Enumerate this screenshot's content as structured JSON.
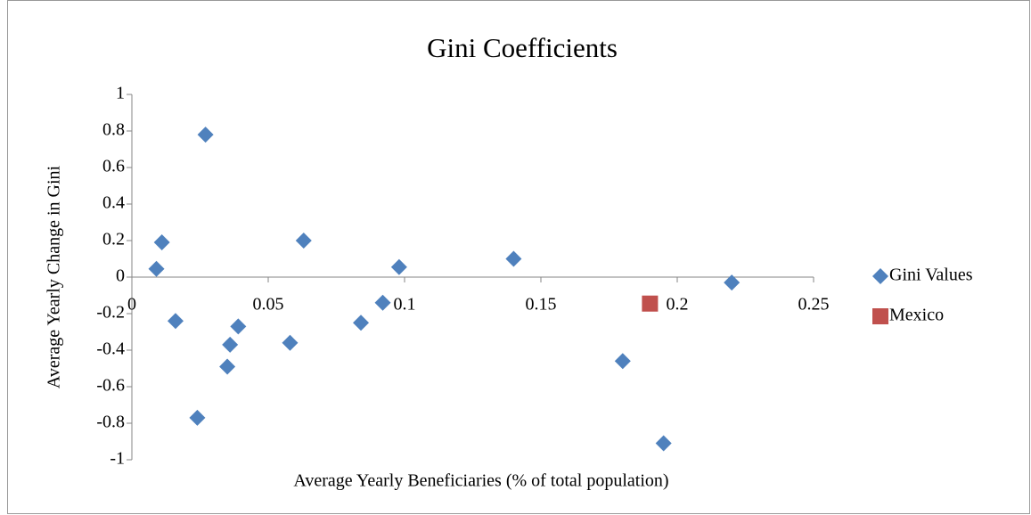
{
  "chart_data": {
    "type": "scatter",
    "title": "Gini Coefficients",
    "x_label": "Average Yearly Beneficiaries (% of total population)",
    "y_label": "Average Yearly Change in Gini",
    "xlim": [
      0,
      0.25
    ],
    "xticks": [
      0,
      0.05,
      0.1,
      0.15,
      0.2,
      0.25
    ],
    "ylim": [
      -1,
      1
    ],
    "yticks": [
      -1,
      -0.8,
      -0.6,
      -0.4,
      -0.2,
      0,
      0.2,
      0.4,
      0.6,
      0.8,
      1
    ],
    "legend": "right",
    "series": [
      {
        "name": "Gini Values",
        "color": "#4f81bd",
        "marker": "diamond",
        "x": [
          0.009,
          0.011,
          0.016,
          0.027,
          0.024,
          0.035,
          0.036,
          0.039,
          0.058,
          0.063,
          0.084,
          0.092,
          0.098,
          0.14,
          0.18,
          0.195,
          0.22
        ],
        "y": [
          0.045,
          0.19,
          -0.24,
          0.78,
          -0.77,
          -0.49,
          -0.37,
          -0.27,
          -0.36,
          0.2,
          -0.25,
          -0.14,
          0.055,
          0.1,
          -0.46,
          -0.91,
          -0.03
        ]
      },
      {
        "name": "Mexico",
        "color": "#c0504d",
        "marker": "square",
        "x": [
          0.19
        ],
        "y": [
          -0.145
        ]
      }
    ]
  }
}
